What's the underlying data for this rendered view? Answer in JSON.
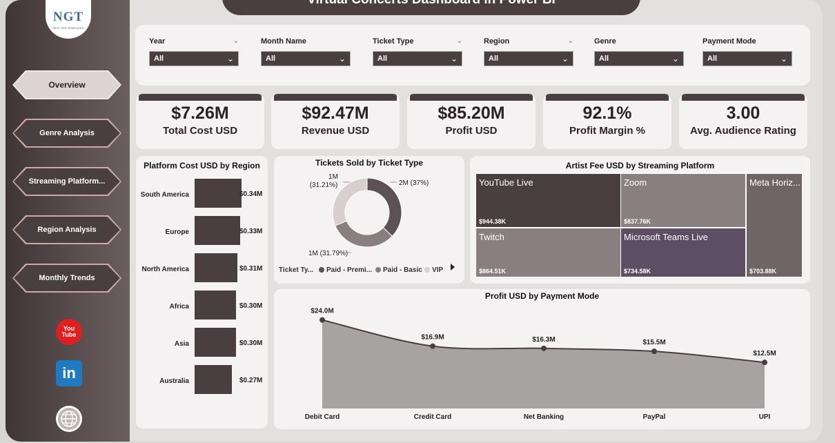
{
  "title": "Virtual Concerts Dashboard in Power BI",
  "logo": {
    "mark": "NGT",
    "sub": "NEXT GEN TEMPLATES"
  },
  "nav": [
    {
      "label": "Overview",
      "active": true
    },
    {
      "label": "Genre Analysis",
      "active": false
    },
    {
      "label": "Streaming Platform...",
      "active": false
    },
    {
      "label": "Region Analysis",
      "active": false
    },
    {
      "label": "Monthly Trends",
      "active": false
    }
  ],
  "social": {
    "youtube_line1": "You",
    "youtube_line2": "Tube",
    "linkedin": "in"
  },
  "slicers": [
    {
      "label": "Year",
      "value": "All"
    },
    {
      "label": "Month Name",
      "value": "All"
    },
    {
      "label": "Ticket Type",
      "value": "All"
    },
    {
      "label": "Region",
      "value": "All"
    },
    {
      "label": "Genre",
      "value": "All"
    },
    {
      "label": "Payment Mode",
      "value": "All"
    }
  ],
  "kpis": [
    {
      "value": "$7.26M",
      "label": "Total Cost USD"
    },
    {
      "value": "$92.47M",
      "label": "Revenue USD"
    },
    {
      "value": "$85.20M",
      "label": "Profit USD"
    },
    {
      "value": "92.1%",
      "label": "Profit Margin %"
    },
    {
      "value": "3.00",
      "label": "Avg. Audience Rating"
    }
  ],
  "colors": {
    "dark": "#4a3f40",
    "mid": "#8a7f80",
    "light": "#d8d0d0",
    "purple": "#5e4e64",
    "accent": "#5c5256"
  },
  "chart_data": [
    {
      "type": "bar",
      "title": "Platform Cost USD by Region",
      "categories": [
        "South America",
        "Europe",
        "North America",
        "Africa",
        "Asia",
        "Australia"
      ],
      "values": [
        0.34,
        0.33,
        0.31,
        0.3,
        0.3,
        0.27
      ],
      "labels": [
        "$0.34M",
        "$0.33M",
        "$0.31M",
        "$0.30M",
        "$0.30M",
        "$0.27M"
      ],
      "orientation": "horizontal",
      "unit": "M USD"
    },
    {
      "type": "pie",
      "title": "Tickets Sold by Ticket Type",
      "categories": [
        "Paid - Premium",
        "Paid - Basic",
        "VIP"
      ],
      "values": [
        37,
        31.79,
        31.21
      ],
      "labels": [
        "2M (37%)",
        "1M (31.79%)",
        "1M (31.21%)"
      ],
      "legend_title": "Ticket Ty...",
      "legend": [
        "Paid - Premi...",
        "Paid - Basic",
        "VIP"
      ]
    },
    {
      "type": "treemap",
      "title": "Artist Fee USD by Streaming Platform",
      "categories": [
        "YouTube Live",
        "Zoom",
        "Twitch",
        "Microsoft Teams Live",
        "Meta Horiz..."
      ],
      "values": [
        944.38,
        837.76,
        864.51,
        734.58,
        703.88
      ],
      "labels": [
        "$944.38K",
        "$837.76K",
        "$864.51K",
        "$734.58K",
        "$703.88K"
      ]
    },
    {
      "type": "area",
      "title": "Profit USD by Payment Mode",
      "categories": [
        "Debit Card",
        "Credit Card",
        "Net Banking",
        "PayPal",
        "UPI"
      ],
      "values": [
        24.0,
        16.9,
        16.3,
        15.5,
        12.5
      ],
      "labels": [
        "$24.0M",
        "$16.9M",
        "$16.3M",
        "$15.5M",
        "$12.5M"
      ],
      "ylim": [
        0,
        26
      ]
    }
  ]
}
